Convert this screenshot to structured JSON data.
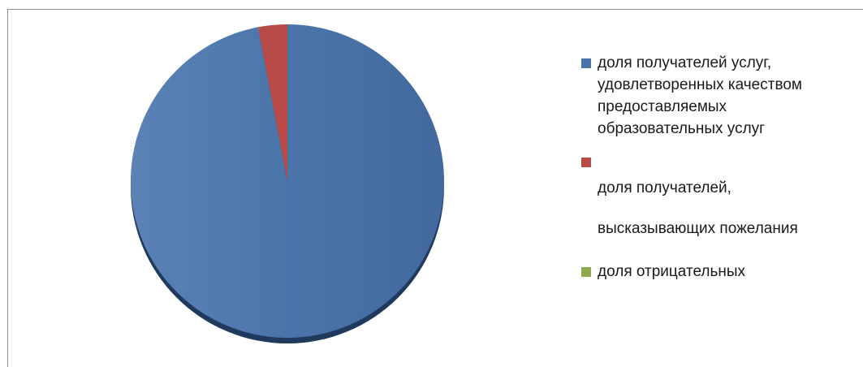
{
  "chart_data": {
    "type": "pie",
    "title": "",
    "series": [
      {
        "values": [
          97,
          3,
          0
        ]
      }
    ],
    "slices": [
      {
        "label": "доля получателей услуг,\nудовлетворенных качеством\nпредоставляемых\nобразовательных услуг",
        "value": 97,
        "color": "#4a73a8"
      },
      {
        "label": "доля получателей,\nвысказывающих пожелания",
        "value": 3,
        "color": "#b84a47"
      },
      {
        "label": "доля отрицательных",
        "value": 0,
        "color": "#8faa4e"
      }
    ],
    "legend_position": "right",
    "style": "3d"
  }
}
